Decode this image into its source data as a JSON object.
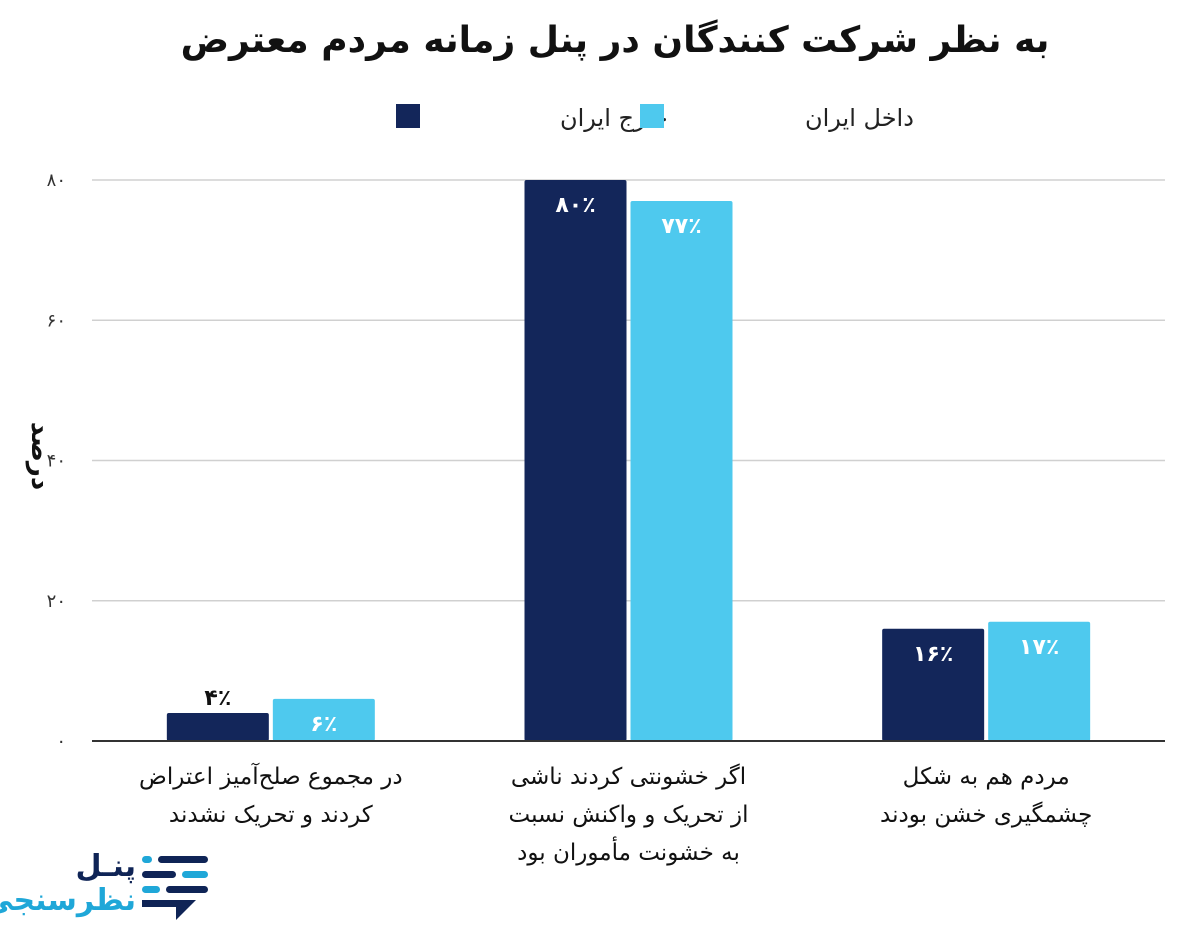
{
  "chart_data": {
    "type": "bar",
    "title": "به نظر شرکت کنندگان در پنل زمانه مردم معترض",
    "ylabel": "درصد",
    "ylim": [
      0,
      80
    ],
    "yticks": [
      "۰",
      "۲۰",
      "۴۰",
      "۶۰",
      "۸۰"
    ],
    "ytick_values": [
      0,
      20,
      40,
      60,
      80
    ],
    "grid": true,
    "legend_position": "top",
    "categories": [
      [
        "در مجموع صلح‌آمیز اعتراض",
        "کردند و تحریک نشدند"
      ],
      [
        "اگر خشونتی کردند ناشی",
        "از تحریک و واکنش نسبت",
        "به خشونت مأموران بود"
      ],
      [
        "مردم هم به شکل",
        "چشمگیری خشن بودند"
      ]
    ],
    "series": [
      {
        "name": "خارج ایران",
        "color": "#13265a",
        "label_color": "#ffffff",
        "values": [
          4,
          80,
          16
        ],
        "labels": [
          "۴٪",
          "۸۰٪",
          "۱۶٪"
        ]
      },
      {
        "name": "داخل ایران",
        "color": "#4ec9ee",
        "label_color": "#ffffff",
        "values": [
          6,
          77,
          17
        ],
        "labels": [
          "۶٪",
          "۷۷٪",
          "۱۷٪"
        ]
      }
    ]
  },
  "logo": {
    "line1": "پنـل",
    "line2": "نظرسنجی"
  }
}
